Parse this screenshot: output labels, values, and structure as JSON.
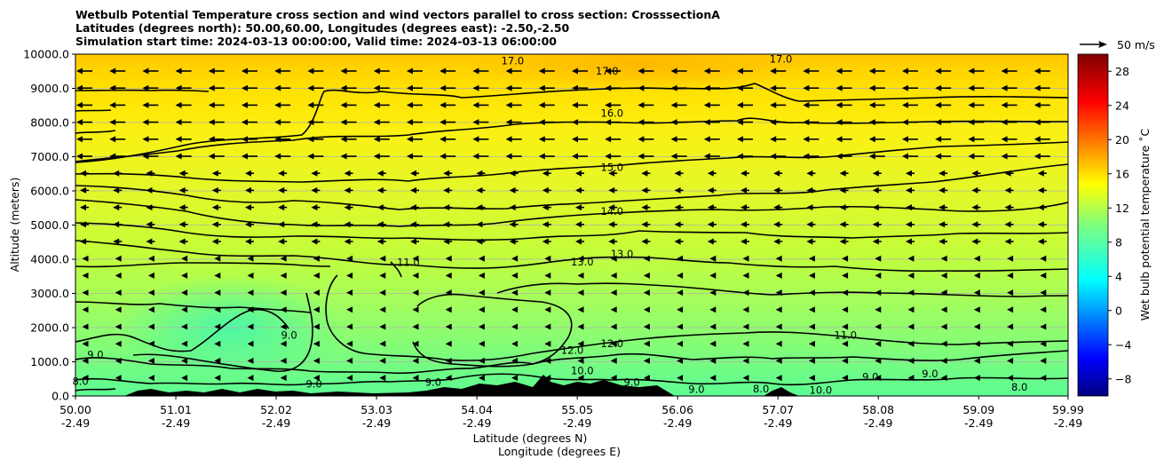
{
  "chart_data": {
    "type": "heatmap",
    "title_lines": [
      "Wetbulb Potential Temperature cross section and wind vectors parallel to cross section: CrosssectionA",
      "Latitudes (degrees north): 50.00,60.00, Longitudes (degrees east): -2.50,-2.50",
      "Simulation start time: 2024-03-13 00:00:00, Valid time: 2024-03-13 06:00:00"
    ],
    "xlabel_line1": "Latitude (degrees N)",
    "xlabel_line2": "Longitude (degrees E)",
    "ylabel": "Altitude (meters)",
    "x_ticks": [
      {
        "lat": "50.00",
        "lon": "-2.49"
      },
      {
        "lat": "51.01",
        "lon": "-2.49"
      },
      {
        "lat": "52.02",
        "lon": "-2.49"
      },
      {
        "lat": "53.03",
        "lon": "-2.49"
      },
      {
        "lat": "54.04",
        "lon": "-2.49"
      },
      {
        "lat": "55.05",
        "lon": "-2.49"
      },
      {
        "lat": "56.06",
        "lon": "-2.49"
      },
      {
        "lat": "57.07",
        "lon": "-2.49"
      },
      {
        "lat": "58.08",
        "lon": "-2.49"
      },
      {
        "lat": "59.09",
        "lon": "-2.49"
      },
      {
        "lat": "59.99",
        "lon": "-2.49"
      }
    ],
    "xlim": [
      50.0,
      59.99
    ],
    "y_ticks": [
      "0.0",
      "1000.0",
      "2000.0",
      "3000.0",
      "4000.0",
      "5000.0",
      "6000.0",
      "7000.0",
      "8000.0",
      "9000.0",
      "10000.0"
    ],
    "ylim": [
      0,
      10000
    ],
    "grid": "horizontal",
    "colorbar": {
      "label": "Wet bulb potential temperature ˚C",
      "ticks": [
        "−8",
        "−4",
        "0",
        "4",
        "8",
        "12",
        "16",
        "20",
        "24",
        "28"
      ],
      "range": [
        -10,
        30
      ]
    },
    "quiver_key": "50 m/s",
    "contour_labels": [
      {
        "text": "17.0",
        "x": 55.35,
        "y": 9400
      },
      {
        "text": "17.0",
        "x": 54.4,
        "y": 9700
      },
      {
        "text": "17.0",
        "x": 57.1,
        "y": 9750
      },
      {
        "text": "16.0",
        "x": 55.4,
        "y": 8170
      },
      {
        "text": "15.0",
        "x": 55.4,
        "y": 6580
      },
      {
        "text": "14.0",
        "x": 55.4,
        "y": 5300
      },
      {
        "text": "13.0",
        "x": 55.1,
        "y": 3820
      },
      {
        "text": "13.0",
        "x": 55.5,
        "y": 4050
      },
      {
        "text": "11.0",
        "x": 53.35,
        "y": 3800
      },
      {
        "text": "11.0",
        "x": 57.75,
        "y": 1680
      },
      {
        "text": "12.0",
        "x": 55.0,
        "y": 1230
      },
      {
        "text": "12.0",
        "x": 55.4,
        "y": 1430
      },
      {
        "text": "10.0",
        "x": 55.1,
        "y": 640
      },
      {
        "text": "10.0",
        "x": 57.5,
        "y": 60
      },
      {
        "text": "9.0",
        "x": 52.15,
        "y": 1680
      },
      {
        "text": "9.0",
        "x": 50.2,
        "y": 1100
      },
      {
        "text": "9.0",
        "x": 56.25,
        "y": 90
      },
      {
        "text": "9.0",
        "x": 58.0,
        "y": 450
      },
      {
        "text": "9.0",
        "x": 58.6,
        "y": 550
      },
      {
        "text": "9.0",
        "x": 52.4,
        "y": 250
      },
      {
        "text": "9.0",
        "x": 53.6,
        "y": 300
      },
      {
        "text": "9.0",
        "x": 55.6,
        "y": 300
      },
      {
        "text": "8.0",
        "x": 50.05,
        "y": 320
      },
      {
        "text": "8.0",
        "x": 56.9,
        "y": 100
      },
      {
        "text": "8.0",
        "x": 59.5,
        "y": 150
      }
    ]
  }
}
